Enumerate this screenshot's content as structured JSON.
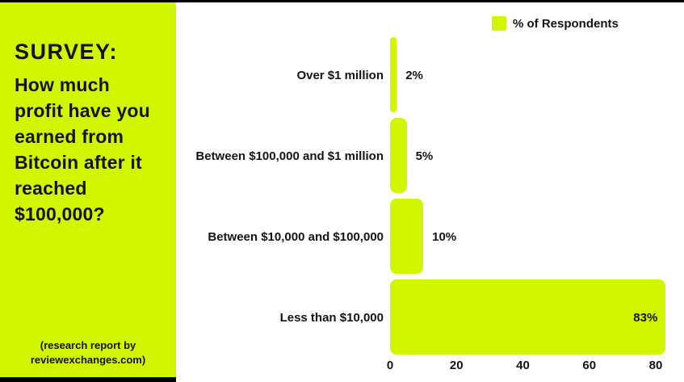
{
  "panel": {
    "title": "SURVEY:",
    "question": "How much\nprofit have you\nearned from\nBitcoin after it\nreached\n$100,000?",
    "footer": "(research report by\nreviewexchanges.com)"
  },
  "legend": {
    "label": "% of Respondents"
  },
  "colors": {
    "accent_green": "#d2f500",
    "text_black": "#141414",
    "chart_background": "#ffffff",
    "frame_black": "#000000"
  },
  "chart_data": {
    "type": "bar",
    "orientation": "horizontal",
    "title": "SURVEY: How much profit have you earned from Bitcoin after it reached $100,000?",
    "series_name": "% of Respondents",
    "categories": [
      "Over $1 million",
      "Between $100,000 and $1 million",
      "Between $10,000 and $100,000",
      "Less than $10,000"
    ],
    "values": [
      2,
      5,
      10,
      83
    ],
    "value_labels": [
      "2%",
      "5%",
      "10%",
      "83%"
    ],
    "value_label_inside": [
      false,
      false,
      false,
      true
    ],
    "xticks": [
      0,
      20,
      40,
      60,
      80
    ],
    "xlim": [
      0,
      88.5
    ],
    "grid": false,
    "legend_position": "top-right",
    "xlabel": "",
    "ylabel": ""
  }
}
